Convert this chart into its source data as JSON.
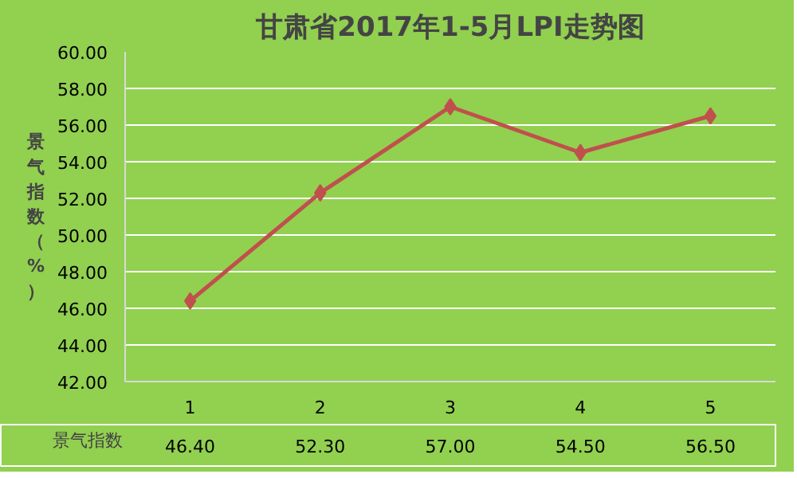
{
  "chart_data": {
    "type": "line",
    "title": "甘肃省2017年1-5月LPI走势图",
    "ylabel": "景气指数（%）",
    "categories": [
      "1",
      "2",
      "3",
      "4",
      "5"
    ],
    "series": [
      {
        "name": "景气指数",
        "color": "#c0504d",
        "values": [
          46.4,
          52.3,
          57.0,
          54.5,
          56.5
        ],
        "value_labels": [
          "46.40",
          "52.30",
          "57.00",
          "54.50",
          "56.50"
        ]
      }
    ],
    "ylim": [
      42,
      60
    ],
    "yticks": [
      {
        "value": 42,
        "label": "42.00"
      },
      {
        "value": 44,
        "label": "44.00"
      },
      {
        "value": 46,
        "label": "46.00"
      },
      {
        "value": 48,
        "label": "48.00"
      },
      {
        "value": 50,
        "label": "50.00"
      },
      {
        "value": 52,
        "label": "52.00"
      },
      {
        "value": 54,
        "label": "54.00"
      },
      {
        "value": 56,
        "label": "56.00"
      },
      {
        "value": 58,
        "label": "58.00"
      },
      {
        "value": 60,
        "label": "60.00"
      }
    ],
    "grid": "y",
    "marker": "diamond",
    "line_style": "solid",
    "legend": "bottom"
  }
}
